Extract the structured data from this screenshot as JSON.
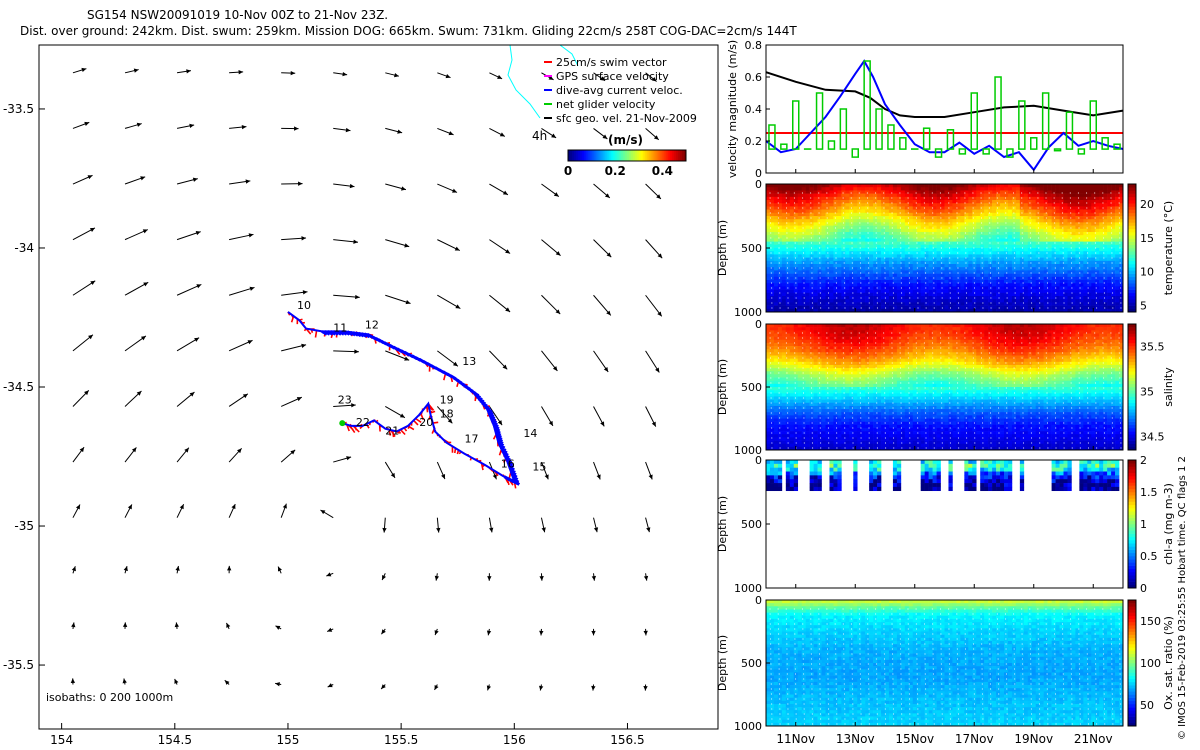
{
  "header": {
    "line1": "SG154 NSW20091019 10-Nov 00Z to 21-Nov 23Z.",
    "line2": "Dist. over ground: 242km. Dist. swum: 259km. Mission DOG: 665km. Swum: 731km. Gliding 22cm/s 258T COG-DAC=2cm/s 144T"
  },
  "credit": "© IMOS 15-Feb-2019 03:25:55 Hobart time. QC flags 1  2",
  "colors": {
    "swim": "#ff0000",
    "gps": "#ff00ff",
    "dac": "#0000ff",
    "net": "#00cc00",
    "geo": "#000000",
    "coast": "#00ffff",
    "refline": "#ff0000"
  },
  "chart_data": [
    {
      "id": "map",
      "type": "scatter",
      "title": "Glider track map with surface geostrophic velocity",
      "xlabel": "",
      "ylabel": "",
      "xlim": [
        153.9,
        156.9
      ],
      "ylim": [
        -35.73,
        -33.27
      ],
      "xticks": [
        "154",
        "154.5",
        "155",
        "155.5",
        "156",
        "156.5"
      ],
      "xtick_values": [
        154,
        154.5,
        155,
        155.5,
        156,
        156.5
      ],
      "yticks": [
        "-33.5",
        "-34",
        "-34.5",
        "-35",
        "-35.5"
      ],
      "ytick_values": [
        -33.5,
        -34,
        -34.5,
        -35,
        -35.5
      ],
      "legend": [
        {
          "label": "25cm/s swim vector",
          "color": "#ff0000"
        },
        {
          "label": "GPS surface velocity",
          "color": "#ff00ff"
        },
        {
          "label": "dive-avg current veloc.",
          "color": "#0000ff"
        },
        {
          "label": "net glider velocity",
          "color": "#00cc00"
        },
        {
          "label": "sfc geo. vel. 21-Nov-2009",
          "color": "#000000"
        }
      ],
      "colorbar": {
        "label": "(m/s)",
        "ticks": [
          "0",
          "0.2",
          "0.4"
        ],
        "range": [
          0,
          0.5
        ]
      },
      "time_label": "4h",
      "isobaths_label": "isobaths: 0   200  1000m",
      "track": [
        [
          155.0,
          -34.23
        ],
        [
          155.05,
          -34.26
        ],
        [
          155.08,
          -34.29
        ],
        [
          155.15,
          -34.3
        ],
        [
          155.25,
          -34.3
        ],
        [
          155.35,
          -34.31
        ],
        [
          155.45,
          -34.35
        ],
        [
          155.58,
          -34.4
        ],
        [
          155.72,
          -34.46
        ],
        [
          155.82,
          -34.52
        ],
        [
          155.88,
          -34.58
        ],
        [
          155.91,
          -34.64
        ],
        [
          155.93,
          -34.7
        ],
        [
          155.97,
          -34.77
        ],
        [
          156.0,
          -34.84
        ],
        [
          155.95,
          -34.82
        ],
        [
          155.87,
          -34.78
        ],
        [
          155.78,
          -34.74
        ],
        [
          155.7,
          -34.7
        ],
        [
          155.65,
          -34.66
        ],
        [
          155.63,
          -34.6
        ],
        [
          155.62,
          -34.56
        ],
        [
          155.58,
          -34.6
        ],
        [
          155.53,
          -34.64
        ],
        [
          155.48,
          -34.66
        ],
        [
          155.43,
          -34.65
        ],
        [
          155.38,
          -34.62
        ],
        [
          155.33,
          -34.64
        ],
        [
          155.28,
          -34.64
        ],
        [
          155.24,
          -34.63
        ]
      ],
      "day_labels": [
        {
          "t": "10",
          "lon": 155.04,
          "lat": -34.22
        },
        {
          "t": "11",
          "lon": 155.2,
          "lat": -34.3
        },
        {
          "t": "12",
          "lon": 155.34,
          "lat": -34.29
        },
        {
          "t": "13",
          "lon": 155.77,
          "lat": -34.42
        },
        {
          "t": "14",
          "lon": 156.04,
          "lat": -34.68
        },
        {
          "t": "15",
          "lon": 156.08,
          "lat": -34.8
        },
        {
          "t": "16",
          "lon": 155.94,
          "lat": -34.79
        },
        {
          "t": "17",
          "lon": 155.78,
          "lat": -34.7
        },
        {
          "t": "18",
          "lon": 155.67,
          "lat": -34.61
        },
        {
          "t": "19",
          "lon": 155.67,
          "lat": -34.56
        },
        {
          "t": "20",
          "lon": 155.58,
          "lat": -34.64
        },
        {
          "t": "21",
          "lon": 155.43,
          "lat": -34.67
        },
        {
          "t": "22",
          "lon": 155.3,
          "lat": -34.64
        },
        {
          "t": "23",
          "lon": 155.22,
          "lat": -34.56
        }
      ]
    },
    {
      "id": "velocity",
      "type": "line",
      "ylabel": "velocity magnitude (m/s)",
      "ylim": [
        0,
        0.8
      ],
      "yticks": [
        "0",
        "0.2",
        "0.4",
        "0.6",
        "0.8"
      ],
      "ytick_values": [
        0,
        0.2,
        0.4,
        0.6,
        0.8
      ],
      "day_range": [
        10.0,
        22.0
      ],
      "series": [
        {
          "name": "swim reference 25cm/s",
          "color": "#ff0000",
          "x": [
            10.0,
            22.0
          ],
          "values": [
            0.25,
            0.25
          ]
        },
        {
          "name": "sfc geostrophic speed",
          "color": "#000000",
          "x": [
            10.0,
            11.0,
            12.0,
            13.0,
            13.5,
            14.0,
            14.5,
            15.0,
            16.0,
            17.0,
            18.0,
            19.0,
            20.0,
            21.0,
            22.0
          ],
          "values": [
            0.63,
            0.57,
            0.52,
            0.51,
            0.47,
            0.4,
            0.36,
            0.35,
            0.35,
            0.38,
            0.41,
            0.42,
            0.39,
            0.36,
            0.39
          ]
        },
        {
          "name": "dive-avg current",
          "color": "#0000ff",
          "x": [
            10.0,
            10.5,
            11.0,
            11.5,
            12.0,
            12.5,
            13.0,
            13.3,
            13.6,
            14.0,
            14.5,
            15.0,
            15.5,
            16.0,
            16.5,
            17.0,
            17.5,
            18.0,
            18.5,
            19.0,
            19.5,
            20.0,
            20.5,
            21.0,
            21.5,
            22.0
          ],
          "values": [
            0.2,
            0.13,
            0.15,
            0.25,
            0.35,
            0.48,
            0.62,
            0.7,
            0.6,
            0.43,
            0.3,
            0.18,
            0.13,
            0.13,
            0.19,
            0.12,
            0.17,
            0.1,
            0.13,
            0.02,
            0.16,
            0.25,
            0.17,
            0.2,
            0.17,
            0.15
          ]
        },
        {
          "name": "net glider velocity",
          "color": "#00cc00",
          "style": "bars",
          "x": [
            10.2,
            10.6,
            11.0,
            11.4,
            11.8,
            12.2,
            12.6,
            13.0,
            13.4,
            13.8,
            14.2,
            14.6,
            15.0,
            15.4,
            15.8,
            16.2,
            16.6,
            17.0,
            17.4,
            17.8,
            18.2,
            18.6,
            19.0,
            19.4,
            19.8,
            20.2,
            20.6,
            21.0,
            21.4,
            21.8
          ],
          "values": [
            0.3,
            0.18,
            0.45,
            0.15,
            0.5,
            0.2,
            0.4,
            0.1,
            0.7,
            0.4,
            0.3,
            0.22,
            0.15,
            0.28,
            0.1,
            0.27,
            0.12,
            0.5,
            0.12,
            0.6,
            0.1,
            0.45,
            0.22,
            0.5,
            0.14,
            0.38,
            0.12,
            0.45,
            0.22,
            0.18
          ]
        }
      ]
    },
    {
      "id": "temperature",
      "type": "heatmap",
      "ylabel": "Depth (m)",
      "ylim": [
        1000,
        0
      ],
      "yticks": [
        "0",
        "500",
        "1000"
      ],
      "ytick_values": [
        0,
        500,
        1000
      ],
      "colorbar": {
        "label": "temperature (°C)",
        "ticks": [
          "5",
          "10",
          "15",
          "20"
        ],
        "tick_values": [
          5,
          10,
          15,
          20
        ],
        "range": [
          4,
          23
        ]
      },
      "profile_depth": [
        0,
        100,
        200,
        300,
        400,
        500,
        600,
        700,
        800,
        900,
        1000
      ],
      "profile_value": [
        22.5,
        20.0,
        18.0,
        15.5,
        13.5,
        11.5,
        9.5,
        8.0,
        6.5,
        5.5,
        4.8
      ]
    },
    {
      "id": "salinity",
      "type": "heatmap",
      "ylabel": "Depth (m)",
      "ylim": [
        1000,
        0
      ],
      "yticks": [
        "0",
        "500",
        "1000"
      ],
      "ytick_values": [
        0,
        500,
        1000
      ],
      "colorbar": {
        "label": "salinity",
        "ticks": [
          "34.5",
          "35",
          "35.5"
        ],
        "tick_values": [
          34.5,
          35,
          35.5
        ],
        "range": [
          34.35,
          35.75
        ]
      },
      "profile_depth": [
        0,
        100,
        200,
        300,
        400,
        500,
        600,
        700,
        800,
        900,
        1000
      ],
      "profile_value": [
        35.6,
        35.55,
        35.45,
        35.3,
        35.1,
        34.95,
        34.8,
        34.65,
        34.55,
        34.5,
        34.45
      ]
    },
    {
      "id": "chla",
      "type": "heatmap",
      "ylabel": "Depth (m)",
      "ylim": [
        1000,
        0
      ],
      "yticks": [
        "0",
        "500",
        "1000"
      ],
      "ytick_values": [
        0,
        500,
        1000
      ],
      "colorbar": {
        "label": "chl-a (mg m-3)",
        "ticks": [
          "0",
          "0.5",
          "1",
          "1.5",
          "2"
        ],
        "tick_values": [
          0,
          0.5,
          1,
          1.5,
          2
        ],
        "range": [
          0,
          2
        ]
      },
      "profile_depth": [
        0,
        40,
        80,
        120,
        160,
        200,
        240
      ],
      "profile_value": [
        0.6,
        0.9,
        0.7,
        0.3,
        0.15,
        0.05,
        0.0
      ],
      "data_depth_max": 240,
      "coverage_days": [
        [
          10.05,
          10.5
        ],
        [
          10.7,
          11.05
        ],
        [
          11.5,
          11.8
        ],
        [
          12.2,
          12.5
        ],
        [
          12.9,
          13.1
        ],
        [
          13.5,
          13.8
        ],
        [
          14.3,
          14.5
        ],
        [
          15.2,
          15.9
        ],
        [
          16.1,
          16.3
        ],
        [
          16.7,
          17.0
        ],
        [
          17.2,
          18.2
        ],
        [
          18.5,
          18.7
        ],
        [
          19.6,
          20.3
        ],
        [
          20.6,
          21.8
        ]
      ]
    },
    {
      "id": "oxygen",
      "type": "heatmap",
      "ylabel": "Depth (m)",
      "ylim": [
        1000,
        0
      ],
      "yticks": [
        "0",
        "500",
        "1000"
      ],
      "ytick_values": [
        0,
        500,
        1000
      ],
      "colorbar": {
        "label": "Ox. sat. ratio (%)",
        "ticks": [
          "50",
          "100",
          "150"
        ],
        "tick_values": [
          50,
          100,
          150
        ],
        "range": [
          25,
          175
        ]
      },
      "profile_depth": [
        0,
        60,
        120,
        250,
        400,
        600,
        800,
        1000
      ],
      "profile_value": [
        115,
        95,
        80,
        75,
        70,
        68,
        72,
        75
      ]
    }
  ],
  "time_axis": {
    "ticks": [
      "11Nov",
      "13Nov",
      "15Nov",
      "17Nov",
      "19Nov",
      "21Nov"
    ],
    "tick_days": [
      11,
      13,
      15,
      17,
      19,
      21
    ]
  }
}
